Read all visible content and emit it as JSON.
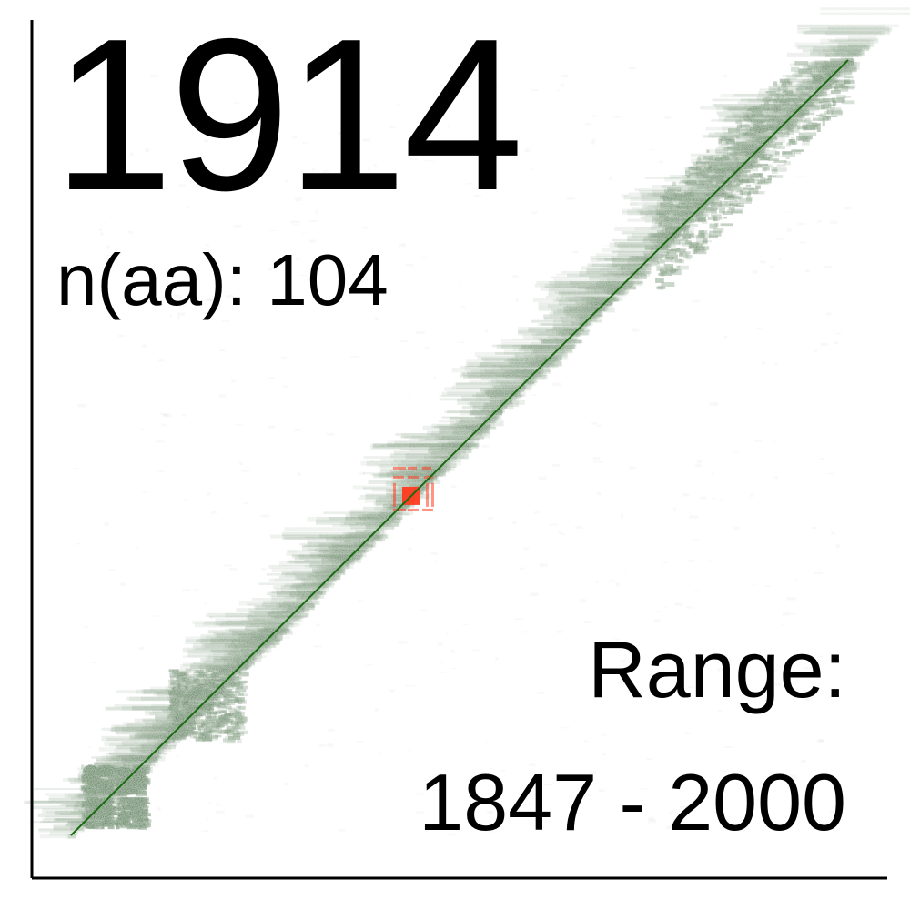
{
  "chart_data": {
    "type": "heatmap",
    "title": "1914",
    "stat_label": "n(aa): 104",
    "range_label": "Range:",
    "range_value": "1847 - 2000",
    "x_range": [
      1847,
      2000
    ],
    "y_range": [
      1847,
      2000
    ],
    "highlight_year": 1914,
    "colors": {
      "similarity": "#1f6f1a",
      "diagonal": "#1a6a12",
      "highlight": "#ff3b1f",
      "axis": "#000000",
      "background": "#ffffff"
    }
  }
}
